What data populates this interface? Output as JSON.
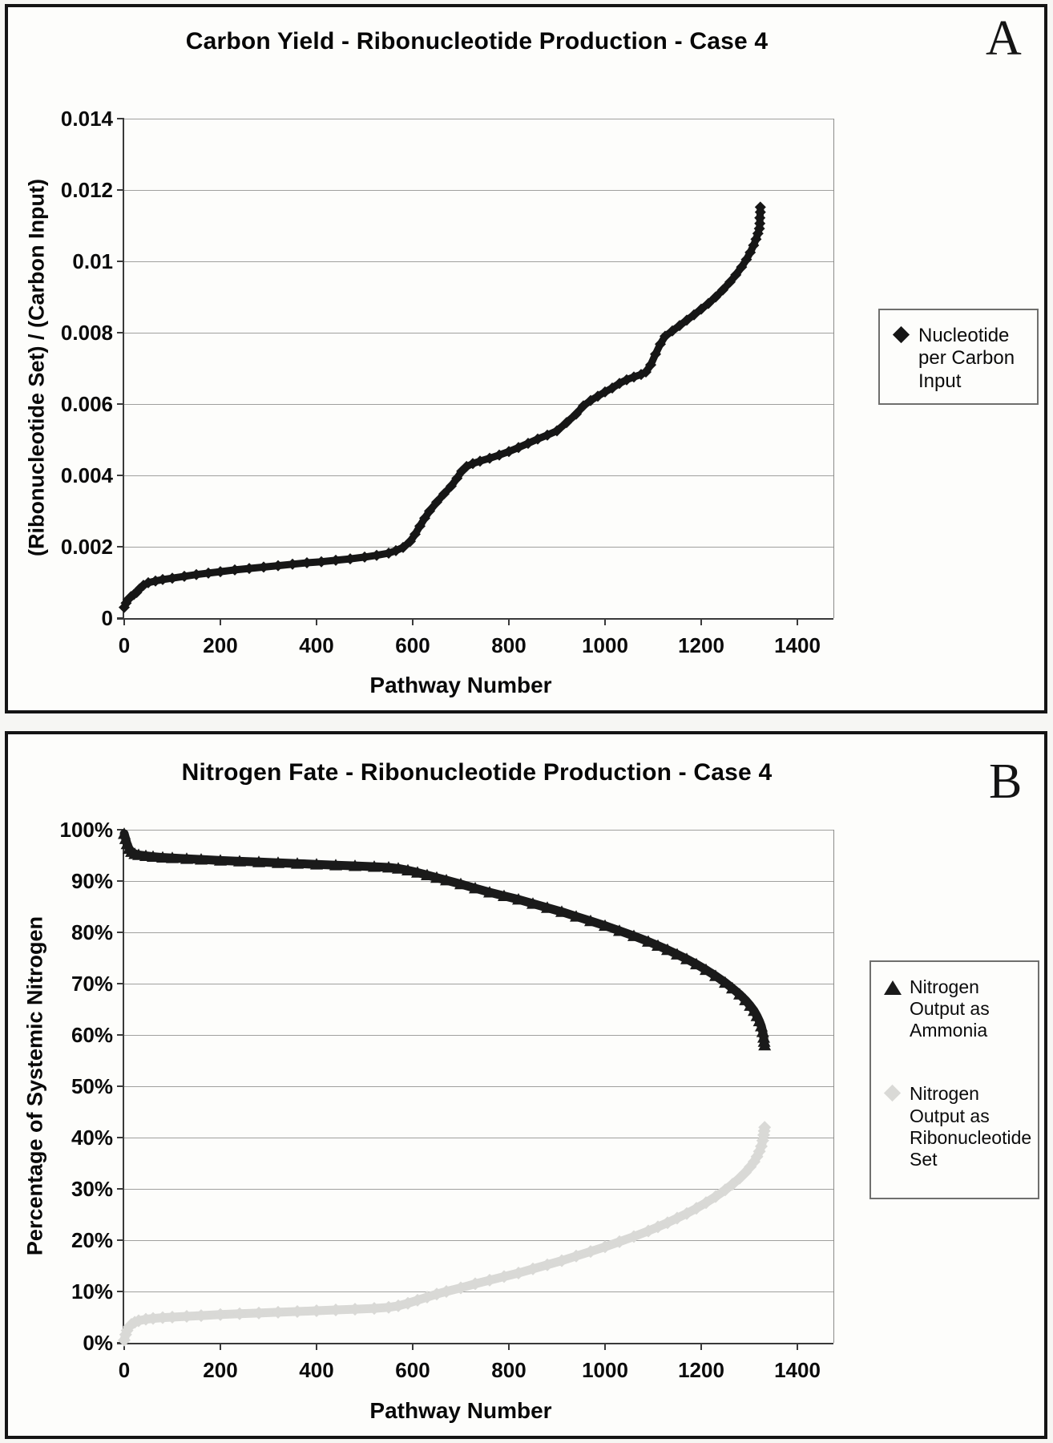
{
  "panels": {
    "a_label": "A",
    "b_label": "B"
  },
  "chart_data": [
    {
      "id": "carbon",
      "type": "scatter",
      "title": "Carbon Yield - Ribonucleotide Production - Case 4",
      "xlabel": "Pathway Number",
      "ylabel": "(Ribonucleotide Set) / (Carbon Input)",
      "xlim": [
        0,
        1475
      ],
      "ylim": [
        0,
        0.014
      ],
      "xticks": [
        0,
        200,
        400,
        600,
        800,
        1000,
        1200,
        1400
      ],
      "yticks": [
        0,
        0.002,
        0.004,
        0.006,
        0.008,
        0.01,
        0.012,
        0.014
      ],
      "ytick_labels": [
        "0",
        "0.002",
        "0.004",
        "0.006",
        "0.008",
        "0.01",
        "0.012",
        "0.014"
      ],
      "grid": "horizontal",
      "legend_position": "right",
      "legend": [
        {
          "label": "Nucleotide per Carbon Input",
          "marker": "diamond",
          "color": "#161616"
        }
      ],
      "series": [
        {
          "name": "Nucleotide per Carbon Input",
          "slug": "nucleotide-per-carbon-input",
          "marker": "diamond",
          "marker_size": 7,
          "line_width": 9,
          "color": "#161616",
          "x": [
            0,
            4,
            8,
            14,
            20,
            26,
            32,
            40,
            50,
            65,
            80,
            100,
            125,
            150,
            175,
            200,
            230,
            260,
            290,
            320,
            350,
            380,
            410,
            440,
            470,
            500,
            525,
            550,
            565,
            580,
            595,
            605,
            615,
            625,
            635,
            650,
            665,
            680,
            692,
            702,
            712,
            725,
            740,
            760,
            780,
            800,
            820,
            840,
            860,
            880,
            900,
            920,
            940,
            955,
            970,
            985,
            1000,
            1015,
            1030,
            1045,
            1060,
            1075,
            1085,
            1095,
            1105,
            1115,
            1125,
            1140,
            1155,
            1170,
            1185,
            1200,
            1215,
            1230,
            1245,
            1260,
            1272,
            1284,
            1294,
            1302,
            1309,
            1314,
            1318,
            1321,
            1322,
            1322,
            1323,
            1323
          ],
          "y": [
            0.0003,
            0.00042,
            0.00052,
            0.0006,
            0.00066,
            0.00072,
            0.00082,
            0.00092,
            0.00099,
            0.00104,
            0.00108,
            0.00112,
            0.00117,
            0.00122,
            0.00126,
            0.0013,
            0.00135,
            0.00139,
            0.00143,
            0.00147,
            0.00151,
            0.00155,
            0.00158,
            0.00162,
            0.00166,
            0.00171,
            0.00176,
            0.00182,
            0.00189,
            0.00198,
            0.00215,
            0.00235,
            0.00258,
            0.0028,
            0.003,
            0.00325,
            0.00348,
            0.0037,
            0.00392,
            0.00412,
            0.00425,
            0.00433,
            0.0044,
            0.00448,
            0.00457,
            0.00467,
            0.00478,
            0.0049,
            0.00502,
            0.00513,
            0.00525,
            0.00548,
            0.00572,
            0.00595,
            0.0061,
            0.00622,
            0.00634,
            0.00645,
            0.00658,
            0.00668,
            0.00676,
            0.00683,
            0.0069,
            0.0071,
            0.0074,
            0.00768,
            0.0079,
            0.00805,
            0.0082,
            0.00835,
            0.0085,
            0.00866,
            0.00882,
            0.009,
            0.0092,
            0.00942,
            0.00962,
            0.00984,
            0.01005,
            0.01025,
            0.01045,
            0.01062,
            0.01078,
            0.01092,
            0.01106,
            0.01122,
            0.01138,
            0.01152
          ]
        }
      ]
    },
    {
      "id": "nitrogen",
      "type": "scatter",
      "title": "Nitrogen Fate - Ribonucleotide Production - Case 4",
      "xlabel": "Pathway Number",
      "ylabel": "Percentage of Systemic Nitrogen",
      "xlim": [
        0,
        1475
      ],
      "ylim": [
        0,
        100
      ],
      "xticks": [
        0,
        200,
        400,
        600,
        800,
        1000,
        1200,
        1400
      ],
      "yticks": [
        0,
        10,
        20,
        30,
        40,
        50,
        60,
        70,
        80,
        90,
        100
      ],
      "ytick_labels": [
        "0%",
        "10%",
        "20%",
        "30%",
        "40%",
        "50%",
        "60%",
        "70%",
        "80%",
        "90%",
        "100%"
      ],
      "grid": "horizontal",
      "legend_position": "right",
      "legend": [
        {
          "label": "Nitrogen Output as Ammonia",
          "marker": "triangle",
          "color": "#1a1a1a"
        },
        {
          "label": "Nitrogen Output as Ribonucleotide Set",
          "marker": "diamond",
          "color": "#d9d9d6"
        }
      ],
      "series": [
        {
          "name": "Nitrogen Output as Ammonia",
          "slug": "nitrogen-output-as-ammonia",
          "marker": "triangle",
          "marker_size": 8,
          "line_width": 11,
          "color": "#1a1a1a",
          "x": [
            0,
            3,
            6,
            10,
            15,
            22,
            30,
            45,
            60,
            80,
            100,
            130,
            160,
            200,
            240,
            280,
            320,
            360,
            400,
            440,
            480,
            520,
            550,
            570,
            590,
            610,
            630,
            650,
            670,
            700,
            730,
            760,
            790,
            820,
            850,
            880,
            910,
            940,
            970,
            1000,
            1030,
            1060,
            1090,
            1110,
            1130,
            1150,
            1170,
            1190,
            1210,
            1230,
            1250,
            1265,
            1280,
            1292,
            1302,
            1310,
            1316,
            1321,
            1325,
            1328,
            1330,
            1331,
            1332
          ],
          "y": [
            99.2,
            98.2,
            97.2,
            96.3,
            95.7,
            95.3,
            95.1,
            94.9,
            94.75,
            94.6,
            94.5,
            94.35,
            94.2,
            94.0,
            93.85,
            93.7,
            93.55,
            93.4,
            93.25,
            93.1,
            92.95,
            92.8,
            92.65,
            92.45,
            92.1,
            91.65,
            91.15,
            90.65,
            90.15,
            89.4,
            88.6,
            87.8,
            87.1,
            86.4,
            85.6,
            84.8,
            84.0,
            83.1,
            82.2,
            81.3,
            80.3,
            79.3,
            78.2,
            77.4,
            76.6,
            75.7,
            74.8,
            73.8,
            72.7,
            71.5,
            70.2,
            69.1,
            67.9,
            66.8,
            65.7,
            64.7,
            63.7,
            62.7,
            61.7,
            60.6,
            59.5,
            58.7,
            58.0
          ]
        },
        {
          "name": "Nitrogen Output as Ribonucleotide Set",
          "slug": "nitrogen-output-as-ribonucleotide-set",
          "marker": "diamond",
          "marker_size": 8,
          "line_width": 11,
          "color": "#d9d9d6",
          "x": [
            0,
            3,
            6,
            10,
            15,
            22,
            30,
            45,
            60,
            80,
            100,
            130,
            160,
            200,
            240,
            280,
            320,
            360,
            400,
            440,
            480,
            520,
            550,
            570,
            590,
            610,
            630,
            650,
            670,
            700,
            730,
            760,
            790,
            820,
            850,
            880,
            910,
            940,
            970,
            1000,
            1030,
            1060,
            1090,
            1110,
            1130,
            1150,
            1170,
            1190,
            1210,
            1230,
            1250,
            1265,
            1280,
            1292,
            1302,
            1310,
            1316,
            1321,
            1325,
            1328,
            1330,
            1331,
            1332
          ],
          "y": [
            0.5,
            1.6,
            2.4,
            3.1,
            3.6,
            4.0,
            4.3,
            4.6,
            4.75,
            4.9,
            5.0,
            5.15,
            5.3,
            5.5,
            5.65,
            5.8,
            5.95,
            6.1,
            6.25,
            6.4,
            6.55,
            6.7,
            6.9,
            7.2,
            7.7,
            8.3,
            8.9,
            9.5,
            10.0,
            10.7,
            11.5,
            12.2,
            12.9,
            13.6,
            14.4,
            15.2,
            16.0,
            16.9,
            17.8,
            18.7,
            19.7,
            20.7,
            21.8,
            22.6,
            23.4,
            24.3,
            25.2,
            26.2,
            27.3,
            28.5,
            29.8,
            30.9,
            32.1,
            33.2,
            34.3,
            35.3,
            36.3,
            37.3,
            38.3,
            39.4,
            40.5,
            41.3,
            42.0
          ]
        }
      ]
    }
  ]
}
